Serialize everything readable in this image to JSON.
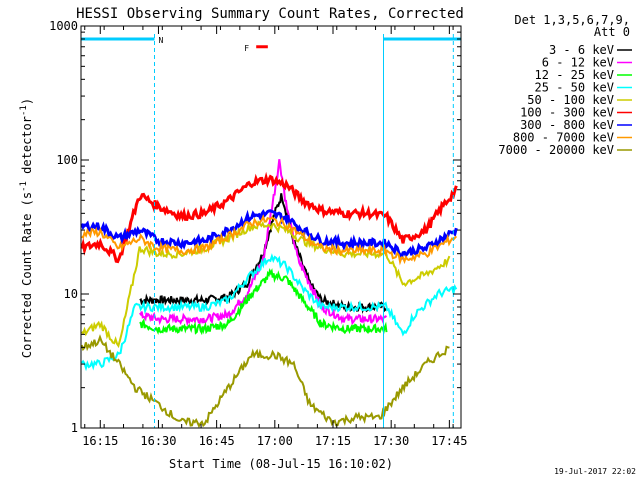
{
  "chart_data": {
    "type": "line",
    "title": "HESSI Observing Summary Count Rates, Corrected",
    "xlabel": "Start Time (08-Jul-15 16:10:02)",
    "ylabel": "Corrected Count Rate (s^-1 detector^-1)",
    "ylabel_main": "Corrected Count Rate (s",
    "ylabel_sup1": "-1",
    "ylabel_mid": " detector",
    "ylabel_sup2": "-1",
    "ylabel_end": ")",
    "yscale": "log",
    "ylim": [
      1,
      1000
    ],
    "xlim": [
      16.1672,
      17.8
    ],
    "xtick_values": [
      16.25,
      16.5,
      16.75,
      17.0,
      17.25,
      17.5,
      17.75
    ],
    "xtick_labels": [
      "16:15",
      "16:30",
      "16:45",
      "17:00",
      "17:15",
      "17:30",
      "17:45"
    ],
    "ytick_values": [
      1,
      10,
      100,
      1000
    ],
    "ytick_labels": [
      "1",
      "10",
      "100",
      "1000"
    ],
    "legend_header": [
      "Det 1,3,5,6,7,9,",
      "Att 0"
    ],
    "legend_placement": "right",
    "timestamp": "19-Jul-2017 22:02",
    "annotations": {
      "night_label": "N",
      "flare_label": "F",
      "night_start": 16.483,
      "night_end": 17.467,
      "saa_lines": [
        16.483,
        17.467,
        17.767
      ],
      "flare_bar": [
        16.92,
        16.97
      ],
      "flare_bar_y": 700,
      "eclipse_bar_y": 800
    },
    "series": [
      {
        "name": "3 - 6 keV",
        "color": "#000000",
        "points": [
          [
            16.42,
            9
          ],
          [
            16.5,
            9
          ],
          [
            16.6,
            9
          ],
          [
            16.7,
            9
          ],
          [
            16.8,
            9.5
          ],
          [
            16.88,
            12
          ],
          [
            16.95,
            20
          ],
          [
            17.0,
            40
          ],
          [
            17.03,
            55
          ],
          [
            17.08,
            25
          ],
          [
            17.15,
            12
          ],
          [
            17.2,
            9
          ],
          [
            17.3,
            8
          ],
          [
            17.4,
            8
          ],
          [
            17.48,
            8
          ]
        ]
      },
      {
        "name": "6 - 12 keV",
        "color": "#ff00ff",
        "points": [
          [
            16.42,
            7
          ],
          [
            16.5,
            6.5
          ],
          [
            16.6,
            6.5
          ],
          [
            16.7,
            6.5
          ],
          [
            16.8,
            7
          ],
          [
            16.88,
            10
          ],
          [
            16.95,
            18
          ],
          [
            17.0,
            60
          ],
          [
            17.02,
            100
          ],
          [
            17.05,
            45
          ],
          [
            17.1,
            18
          ],
          [
            17.2,
            8
          ],
          [
            17.3,
            6.5
          ],
          [
            17.4,
            6.5
          ],
          [
            17.48,
            6.5
          ]
        ]
      },
      {
        "name": "12 - 25 keV",
        "color": "#00ff00",
        "points": [
          [
            16.42,
            6
          ],
          [
            16.5,
            5.5
          ],
          [
            16.6,
            5.5
          ],
          [
            16.7,
            5.5
          ],
          [
            16.8,
            6
          ],
          [
            16.9,
            10
          ],
          [
            16.98,
            14
          ],
          [
            17.05,
            13
          ],
          [
            17.12,
            9
          ],
          [
            17.2,
            6
          ],
          [
            17.3,
            5.5
          ],
          [
            17.4,
            5.5
          ],
          [
            17.48,
            5.5
          ]
        ]
      },
      {
        "name": "25 - 50 keV",
        "color": "#00ffff",
        "points": [
          [
            16.17,
            3
          ],
          [
            16.25,
            3
          ],
          [
            16.33,
            3.5
          ],
          [
            16.4,
            8
          ],
          [
            16.5,
            8
          ],
          [
            16.6,
            8
          ],
          [
            16.7,
            8
          ],
          [
            16.8,
            9
          ],
          [
            16.88,
            13
          ],
          [
            16.98,
            19
          ],
          [
            17.05,
            16
          ],
          [
            17.12,
            11
          ],
          [
            17.2,
            8
          ],
          [
            17.3,
            8
          ],
          [
            17.4,
            8
          ],
          [
            17.48,
            8
          ],
          [
            17.55,
            5
          ],
          [
            17.6,
            7
          ],
          [
            17.7,
            10
          ],
          [
            17.78,
            11
          ]
        ]
      },
      {
        "name": "50 - 100 keV",
        "color": "#cccc00",
        "points": [
          [
            16.17,
            5
          ],
          [
            16.25,
            6
          ],
          [
            16.33,
            4
          ],
          [
            16.42,
            22
          ],
          [
            16.5,
            20
          ],
          [
            16.6,
            20
          ],
          [
            16.7,
            22
          ],
          [
            16.8,
            26
          ],
          [
            16.9,
            32
          ],
          [
            16.98,
            33
          ],
          [
            17.05,
            30
          ],
          [
            17.12,
            25
          ],
          [
            17.2,
            22
          ],
          [
            17.3,
            20
          ],
          [
            17.4,
            20
          ],
          [
            17.48,
            20
          ],
          [
            17.55,
            12
          ],
          [
            17.65,
            14
          ],
          [
            17.75,
            18
          ]
        ]
      },
      {
        "name": "100 - 300 keV",
        "color": "#ff0000",
        "points": [
          [
            16.17,
            22
          ],
          [
            16.25,
            24
          ],
          [
            16.33,
            18
          ],
          [
            16.42,
            55
          ],
          [
            16.5,
            45
          ],
          [
            16.6,
            38
          ],
          [
            16.7,
            40
          ],
          [
            16.8,
            50
          ],
          [
            16.9,
            68
          ],
          [
            16.98,
            72
          ],
          [
            17.05,
            65
          ],
          [
            17.12,
            50
          ],
          [
            17.2,
            42
          ],
          [
            17.3,
            40
          ],
          [
            17.4,
            40
          ],
          [
            17.48,
            38
          ],
          [
            17.55,
            25
          ],
          [
            17.65,
            30
          ],
          [
            17.72,
            45
          ],
          [
            17.78,
            60
          ]
        ]
      },
      {
        "name": "300 - 800 keV",
        "color": "#0000ff",
        "points": [
          [
            16.17,
            32
          ],
          [
            16.25,
            32
          ],
          [
            16.33,
            26
          ],
          [
            16.42,
            30
          ],
          [
            16.5,
            25
          ],
          [
            16.6,
            24
          ],
          [
            16.7,
            25
          ],
          [
            16.8,
            30
          ],
          [
            16.9,
            38
          ],
          [
            16.98,
            40
          ],
          [
            17.05,
            37
          ],
          [
            17.12,
            30
          ],
          [
            17.2,
            25
          ],
          [
            17.3,
            24
          ],
          [
            17.4,
            24
          ],
          [
            17.48,
            24
          ],
          [
            17.55,
            20
          ],
          [
            17.65,
            22
          ],
          [
            17.78,
            30
          ]
        ]
      },
      {
        "name": "800 - 7000 keV",
        "color": "#ff9900",
        "points": [
          [
            16.17,
            28
          ],
          [
            16.25,
            29
          ],
          [
            16.33,
            22
          ],
          [
            16.42,
            26
          ],
          [
            16.5,
            22
          ],
          [
            16.6,
            21
          ],
          [
            16.7,
            22
          ],
          [
            16.8,
            27
          ],
          [
            16.9,
            34
          ],
          [
            16.98,
            36
          ],
          [
            17.05,
            33
          ],
          [
            17.12,
            27
          ],
          [
            17.2,
            22
          ],
          [
            17.3,
            21
          ],
          [
            17.4,
            21
          ],
          [
            17.48,
            21
          ],
          [
            17.55,
            18
          ],
          [
            17.65,
            20
          ],
          [
            17.78,
            27
          ]
        ]
      },
      {
        "name": "7000 - 20000 keV",
        "color": "#999900",
        "points": [
          [
            16.17,
            4
          ],
          [
            16.25,
            4.5
          ],
          [
            16.33,
            3
          ],
          [
            16.4,
            2
          ],
          [
            16.5,
            1.5
          ],
          [
            16.6,
            1.1
          ],
          [
            16.7,
            1.1
          ],
          [
            16.8,
            2
          ],
          [
            16.9,
            3.5
          ],
          [
            17.0,
            3.5
          ],
          [
            17.08,
            3
          ],
          [
            17.15,
            1.5
          ],
          [
            17.25,
            1.1
          ],
          [
            17.35,
            1.2
          ],
          [
            17.45,
            1.2
          ],
          [
            17.55,
            2
          ],
          [
            17.65,
            3
          ],
          [
            17.75,
            4
          ]
        ]
      }
    ]
  }
}
